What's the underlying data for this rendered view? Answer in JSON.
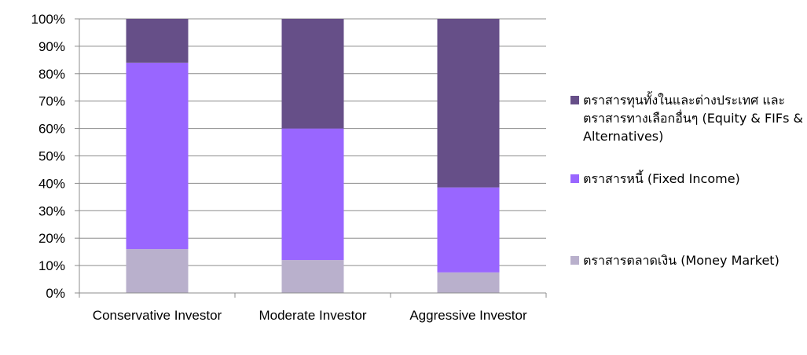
{
  "chart_data": {
    "type": "bar",
    "stacked": true,
    "percent_stacked": true,
    "categories": [
      "Conservative Investor",
      "Moderate Investor",
      "Aggressive Investor"
    ],
    "series": [
      {
        "name": "ตราสารตลาดเงิน (Money Market)",
        "values": [
          16,
          12,
          7.5
        ],
        "color": "#b9b0cc"
      },
      {
        "name": "ตราสารหนี้ (Fixed Income)",
        "values": [
          68,
          48,
          31
        ],
        "color": "#9966ff"
      },
      {
        "name": "ตราสารทุนทั้งในและต่างประเทศ และตราสารทางเลือกอื่นๆ (Equity & FIFs & Alternatives)",
        "values": [
          16,
          40,
          61.5
        ],
        "color": "#664f88"
      }
    ],
    "y_ticks": [
      "0%",
      "10%",
      "20%",
      "30%",
      "40%",
      "50%",
      "60%",
      "70%",
      "80%",
      "90%",
      "100%"
    ],
    "ylim": [
      0,
      100
    ],
    "grid": true,
    "legend_position": "right",
    "title": "",
    "xlabel": "",
    "ylabel": ""
  },
  "legend": [
    {
      "label": "ตราสารทุนทั้งในและต่างประเทศ และตราสารทางเลือกอื่นๆ (Equity & FIFs & Alternatives)",
      "color": "#664f88"
    },
    {
      "label": "ตราสารหนี้ (Fixed Income)",
      "color": "#9966ff"
    },
    {
      "label": "ตราสารตลาดเงิน (Money Market)",
      "color": "#b9b0cc"
    }
  ]
}
